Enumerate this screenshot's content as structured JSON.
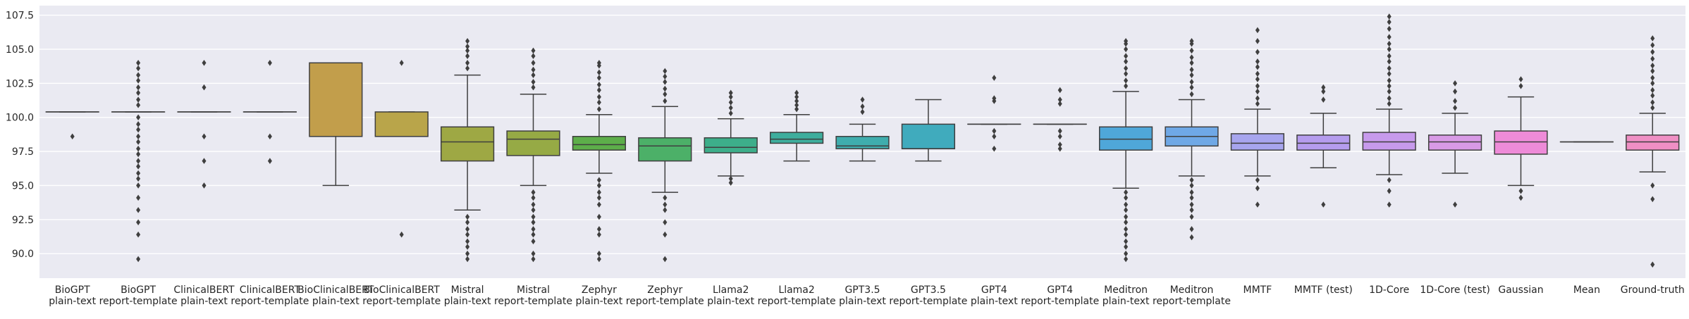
{
  "chart_data": {
    "type": "box",
    "title": "",
    "xlabel": "",
    "ylabel": "",
    "ylim": [
      88.2,
      108.2
    ],
    "y_ticks": [
      90.0,
      92.5,
      95.0,
      97.5,
      100.0,
      102.5,
      105.0,
      107.5
    ],
    "y_tick_labels": [
      "90.0",
      "92.5",
      "95.0",
      "97.5",
      "100.0",
      "102.5",
      "105.0",
      "107.5"
    ],
    "grid": true,
    "background": "#EAEAF2",
    "categories": [
      [
        "BioGPT",
        "plain-text"
      ],
      [
        "BioGPT",
        "report-template"
      ],
      [
        "ClinicalBERT",
        "plain-text"
      ],
      [
        "ClinicalBERT",
        "report-template"
      ],
      [
        "BioClinicalBERT",
        "plain-text"
      ],
      [
        "BioClinicalBERT",
        "report-template"
      ],
      [
        "Mistral",
        "plain-text"
      ],
      [
        "Mistral",
        "report-template"
      ],
      [
        "Zephyr",
        "plain-text"
      ],
      [
        "Zephyr",
        "report-template"
      ],
      [
        "Llama2",
        "plain-text"
      ],
      [
        "Llama2",
        "report-template"
      ],
      [
        "GPT3.5",
        "plain-text"
      ],
      [
        "GPT3.5",
        "report-template"
      ],
      [
        "GPT4",
        "plain-text"
      ],
      [
        "GPT4",
        "report-template"
      ],
      [
        "Meditron",
        "plain-text"
      ],
      [
        "Meditron",
        "report-template"
      ],
      [
        "MMTF"
      ],
      [
        "MMTF (test)"
      ],
      [
        "1D-Core"
      ],
      [
        "1D-Core (test)"
      ],
      [
        "Gaussian"
      ],
      [
        "Mean"
      ],
      [
        "Ground-truth"
      ]
    ],
    "boxes": [
      {
        "whislo": 100.4,
        "q1": 100.4,
        "med": 100.4,
        "q3": 100.4,
        "whishi": 100.4,
        "color": "#E8E8EE",
        "fliers": [
          98.6
        ]
      },
      {
        "whislo": 100.4,
        "q1": 100.4,
        "med": 100.4,
        "q3": 100.4,
        "whishi": 100.4,
        "color": "#E8E8EE",
        "fliers": [
          89.6,
          91.4,
          92.3,
          93.2,
          94.1,
          95.0,
          95.5,
          95.9,
          96.4,
          96.8,
          97.3,
          97.7,
          98.2,
          98.6,
          99.1,
          99.5,
          100.0,
          100.9,
          101.3,
          101.8,
          102.2,
          102.7,
          103.1,
          103.6,
          104.0
        ]
      },
      {
        "whislo": 100.4,
        "q1": 100.4,
        "med": 100.4,
        "q3": 100.4,
        "whishi": 100.4,
        "color": "#E8E8EE",
        "fliers": [
          95.0,
          96.8,
          98.6,
          102.2,
          104.0
        ]
      },
      {
        "whislo": 100.4,
        "q1": 100.4,
        "med": 100.4,
        "q3": 100.4,
        "whishi": 100.4,
        "color": "#E8E8EE",
        "fliers": [
          96.8,
          98.6,
          104.0
        ]
      },
      {
        "whislo": 95.0,
        "q1": 98.6,
        "med": 104.0,
        "q3": 104.0,
        "whishi": 104.0,
        "color": "#C29E4B",
        "fliers": []
      },
      {
        "whislo": 98.6,
        "q1": 98.6,
        "med": 98.6,
        "q3": 100.4,
        "whishi": 100.4,
        "color": "#B9A54A",
        "fliers": [
          91.4,
          104.0
        ]
      },
      {
        "whislo": 93.2,
        "q1": 96.8,
        "med": 98.2,
        "q3": 99.3,
        "whishi": 103.1,
        "color": "#9EA844",
        "fliers": [
          89.6,
          90.0,
          90.5,
          90.9,
          91.4,
          91.8,
          92.3,
          92.7,
          103.6,
          104.0,
          104.5,
          104.9,
          105.2,
          105.6
        ]
      },
      {
        "whislo": 95.0,
        "q1": 97.2,
        "med": 98.4,
        "q3": 99.0,
        "whishi": 101.7,
        "color": "#96AA45",
        "fliers": [
          89.6,
          90.0,
          90.9,
          91.4,
          91.8,
          92.3,
          92.7,
          93.2,
          93.6,
          94.1,
          94.5,
          102.2,
          102.6,
          103.1,
          103.5,
          104.0,
          104.5,
          104.9
        ]
      },
      {
        "whislo": 95.9,
        "q1": 97.6,
        "med": 98.0,
        "q3": 98.6,
        "whishi": 100.2,
        "color": "#5DAE4A",
        "fliers": [
          89.6,
          90.0,
          91.4,
          91.8,
          92.7,
          93.6,
          94.1,
          94.5,
          95.0,
          95.4,
          100.6,
          101.1,
          101.5,
          102.0,
          102.4,
          102.9,
          103.3,
          103.8,
          104.0
        ]
      },
      {
        "whislo": 94.5,
        "q1": 96.8,
        "med": 97.9,
        "q3": 98.5,
        "whishi": 100.8,
        "color": "#4CB068",
        "fliers": [
          89.6,
          91.4,
          92.3,
          93.2,
          93.6,
          94.1,
          101.2,
          101.7,
          102.1,
          102.6,
          103.0,
          103.4
        ]
      },
      {
        "whislo": 95.7,
        "q1": 97.4,
        "med": 97.8,
        "q3": 98.5,
        "whishi": 99.9,
        "color": "#3DAE8A",
        "fliers": [
          95.2,
          95.5,
          100.3,
          100.7,
          101.1,
          101.5,
          101.8
        ]
      },
      {
        "whislo": 96.8,
        "q1": 98.1,
        "med": 98.4,
        "q3": 98.9,
        "whishi": 100.2,
        "color": "#3EAE9D",
        "fliers": [
          100.6,
          100.9,
          101.2,
          101.5,
          101.8
        ]
      },
      {
        "whislo": 96.8,
        "q1": 97.7,
        "med": 97.9,
        "q3": 98.6,
        "whishi": 99.5,
        "color": "#3FADAD",
        "fliers": [
          100.4,
          100.8,
          101.3
        ]
      },
      {
        "whislo": 96.8,
        "q1": 97.7,
        "med": 97.7,
        "q3": 99.5,
        "whishi": 101.3,
        "color": "#40ABBD",
        "fliers": []
      },
      {
        "whislo": 99.5,
        "q1": 99.5,
        "med": 99.5,
        "q3": 99.5,
        "whishi": 99.5,
        "color": "#E8E8EE",
        "fliers": [
          97.7,
          98.6,
          99.0,
          101.2,
          101.4,
          102.9
        ]
      },
      {
        "whislo": 99.5,
        "q1": 99.5,
        "med": 99.5,
        "q3": 99.5,
        "whishi": 99.5,
        "color": "#E8E8EE",
        "fliers": [
          97.7,
          98.0,
          98.6,
          99.0,
          101.0,
          101.3,
          102.0
        ]
      },
      {
        "whislo": 94.8,
        "q1": 97.6,
        "med": 98.4,
        "q3": 99.3,
        "whishi": 101.9,
        "color": "#4FA7D9",
        "fliers": [
          89.6,
          90.0,
          90.5,
          90.9,
          91.4,
          91.8,
          92.3,
          92.7,
          93.2,
          93.6,
          94.1,
          94.5,
          102.3,
          102.7,
          103.2,
          103.6,
          104.1,
          104.5,
          105.0,
          105.4,
          105.6
        ]
      },
      {
        "whislo": 95.7,
        "q1": 97.9,
        "med": 98.6,
        "q3": 99.3,
        "whishi": 101.3,
        "color": "#6FA8E6",
        "fliers": [
          91.2,
          91.8,
          92.7,
          93.2,
          93.6,
          94.1,
          94.5,
          95.0,
          95.4,
          101.7,
          102.2,
          102.6,
          103.1,
          103.5,
          104.0,
          104.4,
          104.9,
          105.4,
          105.6
        ]
      },
      {
        "whislo": 95.7,
        "q1": 97.6,
        "med": 98.1,
        "q3": 98.8,
        "whishi": 100.6,
        "color": "#A7A5EE",
        "fliers": [
          93.6,
          94.8,
          95.4,
          101.0,
          101.4,
          101.9,
          102.3,
          102.8,
          103.2,
          103.7,
          104.1,
          104.8,
          105.6,
          106.4
        ]
      },
      {
        "whislo": 96.3,
        "q1": 97.6,
        "med": 98.1,
        "q3": 98.7,
        "whishi": 100.3,
        "color": "#B59CEE",
        "fliers": [
          93.6,
          101.3,
          101.9,
          102.2
        ]
      },
      {
        "whislo": 95.8,
        "q1": 97.6,
        "med": 98.2,
        "q3": 98.9,
        "whishi": 100.6,
        "color": "#C79AEC",
        "fliers": [
          93.6,
          94.6,
          95.4,
          101.0,
          101.4,
          101.9,
          102.3,
          102.7,
          103.2,
          103.6,
          104.1,
          104.5,
          105.0,
          105.4,
          105.9,
          106.5,
          107.0,
          107.4
        ]
      },
      {
        "whislo": 95.9,
        "q1": 97.6,
        "med": 98.2,
        "q3": 98.7,
        "whishi": 100.3,
        "color": "#D89AE6",
        "fliers": [
          93.6,
          100.7,
          101.2,
          101.9,
          102.5
        ]
      },
      {
        "whislo": 95.0,
        "q1": 97.3,
        "med": 98.2,
        "q3": 99.0,
        "whishi": 101.5,
        "color": "#EE8BD8",
        "fliers": [
          94.1,
          94.6,
          102.3,
          102.8
        ]
      },
      {
        "whislo": 98.2,
        "q1": 98.2,
        "med": 98.2,
        "q3": 98.2,
        "whishi": 98.2,
        "color": "#E8E8EE",
        "fliers": []
      },
      {
        "whislo": 96.0,
        "q1": 97.6,
        "med": 98.2,
        "q3": 98.7,
        "whishi": 100.3,
        "color": "#EF8FC4",
        "fliers": [
          89.2,
          94.0,
          95.0,
          100.7,
          101.1,
          101.6,
          102.0,
          102.5,
          102.9,
          103.4,
          103.8,
          104.3,
          104.8,
          105.3,
          105.8
        ]
      }
    ]
  }
}
